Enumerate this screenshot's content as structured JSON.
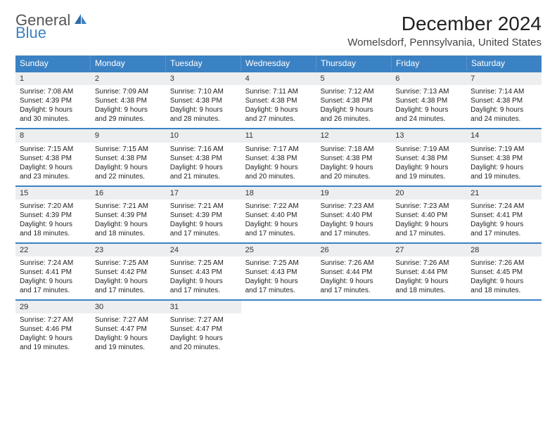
{
  "logo": {
    "text1": "General",
    "text2": "Blue"
  },
  "header": {
    "month_title": "December 2024",
    "location": "Womelsdorf, Pennsylvania, United States"
  },
  "colors": {
    "accent": "#3b82c4",
    "daynum_bg": "#eceeef",
    "text": "#222222",
    "logo_gray": "#555555"
  },
  "days_of_week": [
    "Sunday",
    "Monday",
    "Tuesday",
    "Wednesday",
    "Thursday",
    "Friday",
    "Saturday"
  ],
  "weeks": [
    [
      {
        "d": "1",
        "sr": "Sunrise: 7:08 AM",
        "ss": "Sunset: 4:39 PM",
        "dl1": "Daylight: 9 hours",
        "dl2": "and 30 minutes."
      },
      {
        "d": "2",
        "sr": "Sunrise: 7:09 AM",
        "ss": "Sunset: 4:38 PM",
        "dl1": "Daylight: 9 hours",
        "dl2": "and 29 minutes."
      },
      {
        "d": "3",
        "sr": "Sunrise: 7:10 AM",
        "ss": "Sunset: 4:38 PM",
        "dl1": "Daylight: 9 hours",
        "dl2": "and 28 minutes."
      },
      {
        "d": "4",
        "sr": "Sunrise: 7:11 AM",
        "ss": "Sunset: 4:38 PM",
        "dl1": "Daylight: 9 hours",
        "dl2": "and 27 minutes."
      },
      {
        "d": "5",
        "sr": "Sunrise: 7:12 AM",
        "ss": "Sunset: 4:38 PM",
        "dl1": "Daylight: 9 hours",
        "dl2": "and 26 minutes."
      },
      {
        "d": "6",
        "sr": "Sunrise: 7:13 AM",
        "ss": "Sunset: 4:38 PM",
        "dl1": "Daylight: 9 hours",
        "dl2": "and 24 minutes."
      },
      {
        "d": "7",
        "sr": "Sunrise: 7:14 AM",
        "ss": "Sunset: 4:38 PM",
        "dl1": "Daylight: 9 hours",
        "dl2": "and 24 minutes."
      }
    ],
    [
      {
        "d": "8",
        "sr": "Sunrise: 7:15 AM",
        "ss": "Sunset: 4:38 PM",
        "dl1": "Daylight: 9 hours",
        "dl2": "and 23 minutes."
      },
      {
        "d": "9",
        "sr": "Sunrise: 7:15 AM",
        "ss": "Sunset: 4:38 PM",
        "dl1": "Daylight: 9 hours",
        "dl2": "and 22 minutes."
      },
      {
        "d": "10",
        "sr": "Sunrise: 7:16 AM",
        "ss": "Sunset: 4:38 PM",
        "dl1": "Daylight: 9 hours",
        "dl2": "and 21 minutes."
      },
      {
        "d": "11",
        "sr": "Sunrise: 7:17 AM",
        "ss": "Sunset: 4:38 PM",
        "dl1": "Daylight: 9 hours",
        "dl2": "and 20 minutes."
      },
      {
        "d": "12",
        "sr": "Sunrise: 7:18 AM",
        "ss": "Sunset: 4:38 PM",
        "dl1": "Daylight: 9 hours",
        "dl2": "and 20 minutes."
      },
      {
        "d": "13",
        "sr": "Sunrise: 7:19 AM",
        "ss": "Sunset: 4:38 PM",
        "dl1": "Daylight: 9 hours",
        "dl2": "and 19 minutes."
      },
      {
        "d": "14",
        "sr": "Sunrise: 7:19 AM",
        "ss": "Sunset: 4:38 PM",
        "dl1": "Daylight: 9 hours",
        "dl2": "and 19 minutes."
      }
    ],
    [
      {
        "d": "15",
        "sr": "Sunrise: 7:20 AM",
        "ss": "Sunset: 4:39 PM",
        "dl1": "Daylight: 9 hours",
        "dl2": "and 18 minutes."
      },
      {
        "d": "16",
        "sr": "Sunrise: 7:21 AM",
        "ss": "Sunset: 4:39 PM",
        "dl1": "Daylight: 9 hours",
        "dl2": "and 18 minutes."
      },
      {
        "d": "17",
        "sr": "Sunrise: 7:21 AM",
        "ss": "Sunset: 4:39 PM",
        "dl1": "Daylight: 9 hours",
        "dl2": "and 17 minutes."
      },
      {
        "d": "18",
        "sr": "Sunrise: 7:22 AM",
        "ss": "Sunset: 4:40 PM",
        "dl1": "Daylight: 9 hours",
        "dl2": "and 17 minutes."
      },
      {
        "d": "19",
        "sr": "Sunrise: 7:23 AM",
        "ss": "Sunset: 4:40 PM",
        "dl1": "Daylight: 9 hours",
        "dl2": "and 17 minutes."
      },
      {
        "d": "20",
        "sr": "Sunrise: 7:23 AM",
        "ss": "Sunset: 4:40 PM",
        "dl1": "Daylight: 9 hours",
        "dl2": "and 17 minutes."
      },
      {
        "d": "21",
        "sr": "Sunrise: 7:24 AM",
        "ss": "Sunset: 4:41 PM",
        "dl1": "Daylight: 9 hours",
        "dl2": "and 17 minutes."
      }
    ],
    [
      {
        "d": "22",
        "sr": "Sunrise: 7:24 AM",
        "ss": "Sunset: 4:41 PM",
        "dl1": "Daylight: 9 hours",
        "dl2": "and 17 minutes."
      },
      {
        "d": "23",
        "sr": "Sunrise: 7:25 AM",
        "ss": "Sunset: 4:42 PM",
        "dl1": "Daylight: 9 hours",
        "dl2": "and 17 minutes."
      },
      {
        "d": "24",
        "sr": "Sunrise: 7:25 AM",
        "ss": "Sunset: 4:43 PM",
        "dl1": "Daylight: 9 hours",
        "dl2": "and 17 minutes."
      },
      {
        "d": "25",
        "sr": "Sunrise: 7:25 AM",
        "ss": "Sunset: 4:43 PM",
        "dl1": "Daylight: 9 hours",
        "dl2": "and 17 minutes."
      },
      {
        "d": "26",
        "sr": "Sunrise: 7:26 AM",
        "ss": "Sunset: 4:44 PM",
        "dl1": "Daylight: 9 hours",
        "dl2": "and 17 minutes."
      },
      {
        "d": "27",
        "sr": "Sunrise: 7:26 AM",
        "ss": "Sunset: 4:44 PM",
        "dl1": "Daylight: 9 hours",
        "dl2": "and 18 minutes."
      },
      {
        "d": "28",
        "sr": "Sunrise: 7:26 AM",
        "ss": "Sunset: 4:45 PM",
        "dl1": "Daylight: 9 hours",
        "dl2": "and 18 minutes."
      }
    ],
    [
      {
        "d": "29",
        "sr": "Sunrise: 7:27 AM",
        "ss": "Sunset: 4:46 PM",
        "dl1": "Daylight: 9 hours",
        "dl2": "and 19 minutes."
      },
      {
        "d": "30",
        "sr": "Sunrise: 7:27 AM",
        "ss": "Sunset: 4:47 PM",
        "dl1": "Daylight: 9 hours",
        "dl2": "and 19 minutes."
      },
      {
        "d": "31",
        "sr": "Sunrise: 7:27 AM",
        "ss": "Sunset: 4:47 PM",
        "dl1": "Daylight: 9 hours",
        "dl2": "and 20 minutes."
      },
      null,
      null,
      null,
      null
    ]
  ]
}
